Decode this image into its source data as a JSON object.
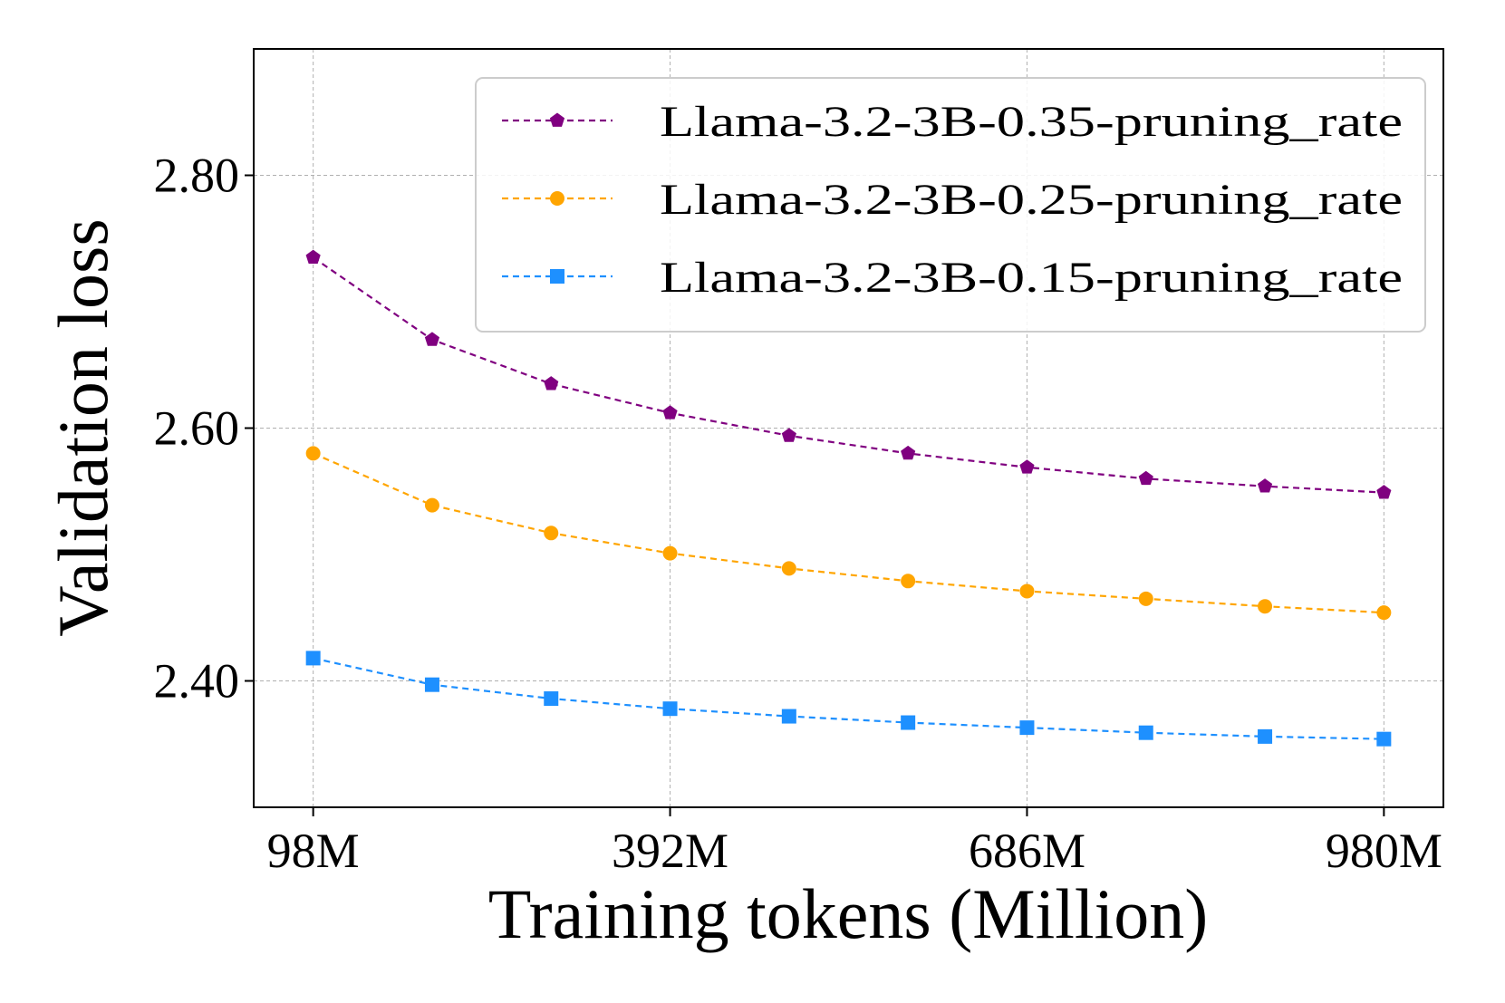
{
  "chart_data": {
    "type": "line",
    "title": "",
    "xlabel": "Training tokens (Million)",
    "ylabel": "Validation loss",
    "x": [
      98,
      196,
      294,
      392,
      490,
      588,
      686,
      784,
      882,
      980
    ],
    "xticks": [
      98,
      392,
      686,
      980
    ],
    "xtick_labels": [
      "98M",
      "392M",
      "686M",
      "980M"
    ],
    "xlim": [
      49,
      1029
    ],
    "yticks": [
      2.4,
      2.6,
      2.8
    ],
    "ytick_labels": [
      "2.40",
      "2.60",
      "2.80"
    ],
    "ylim": [
      2.3,
      2.9
    ],
    "grid": true,
    "legend_position": "top-right",
    "series": [
      {
        "name": "Llama-3.2-3B-0.35-pruning_rate",
        "color": "#800080",
        "marker": "pentagon",
        "line_style": "dashed",
        "values": [
          2.735,
          2.67,
          2.635,
          2.612,
          2.594,
          2.58,
          2.569,
          2.56,
          2.554,
          2.549
        ]
      },
      {
        "name": "Llama-3.2-3B-0.25-pruning_rate",
        "color": "#FFA500",
        "marker": "circle",
        "line_style": "dashed",
        "values": [
          2.58,
          2.539,
          2.517,
          2.501,
          2.489,
          2.479,
          2.471,
          2.465,
          2.459,
          2.454
        ]
      },
      {
        "name": "Llama-3.2-3B-0.15-pruning_rate",
        "color": "#1E90FF",
        "marker": "square",
        "line_style": "dashed",
        "values": [
          2.418,
          2.397,
          2.386,
          2.378,
          2.372,
          2.367,
          2.363,
          2.359,
          2.356,
          2.354
        ]
      }
    ]
  }
}
